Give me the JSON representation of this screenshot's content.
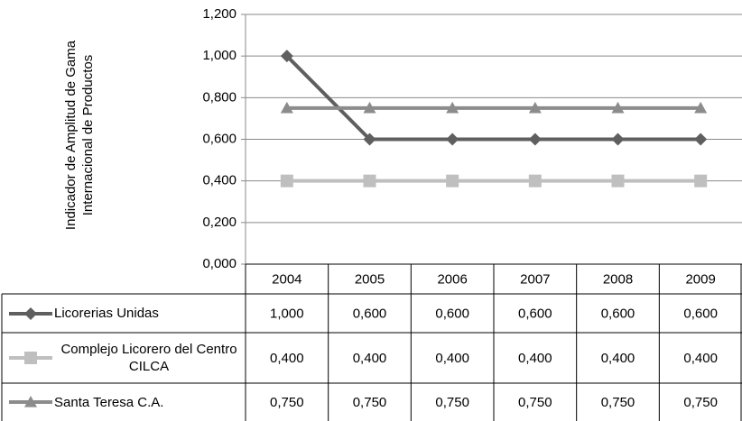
{
  "chart_data": {
    "type": "line",
    "y_label": "Indicador de Amplitud de Gama Internacional de Productos",
    "categories": [
      "2004",
      "2005",
      "2006",
      "2007",
      "2008",
      "2009"
    ],
    "series": [
      {
        "name": "Licorerias Unidas",
        "color": "#5f5f5f",
        "marker": "diamond",
        "values": [
          1.0,
          0.6,
          0.6,
          0.6,
          0.6,
          0.6
        ],
        "value_labels": [
          "1,000",
          "0,600",
          "0,600",
          "0,600",
          "0,600",
          "0,600"
        ]
      },
      {
        "name": "Complejo Licorero del Centro CILCA",
        "color": "#bfbfbf",
        "marker": "square",
        "values": [
          0.4,
          0.4,
          0.4,
          0.4,
          0.4,
          0.4
        ],
        "value_labels": [
          "0,400",
          "0,400",
          "0,400",
          "0,400",
          "0,400",
          "0,400"
        ]
      },
      {
        "name": "Santa Teresa C.A.",
        "color": "#8c8c8c",
        "marker": "triangle",
        "values": [
          0.75,
          0.75,
          0.75,
          0.75,
          0.75,
          0.75
        ],
        "value_labels": [
          "0,750",
          "0,750",
          "0,750",
          "0,750",
          "0,750",
          "0,750"
        ]
      }
    ],
    "ylim": [
      0,
      1.2
    ],
    "yticks": [
      {
        "value": 0,
        "label": "0,000"
      },
      {
        "value": 0.2,
        "label": "0,200"
      },
      {
        "value": 0.4,
        "label": "0,400"
      },
      {
        "value": 0.6,
        "label": "0,600"
      },
      {
        "value": 0.8,
        "label": "0,800"
      },
      {
        "value": 1.0,
        "label": "1,000"
      },
      {
        "value": 1.2,
        "label": "1,200"
      }
    ],
    "grid": true,
    "data_table": true
  }
}
